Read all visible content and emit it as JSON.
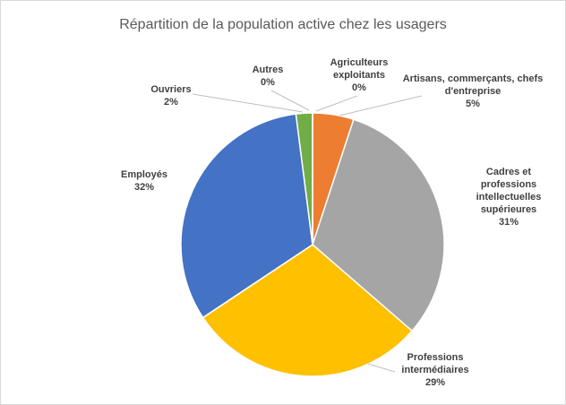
{
  "chart_data": {
    "type": "pie",
    "title": "Répartition de la population active chez les usagers",
    "categories": [
      "Agriculteurs exploitants",
      "Artisans, commerçants, chefs d'entreprise",
      "Cadres et professions intellectuelles supérieures",
      "Professions intermédiaires",
      "Employés",
      "Ouvriers",
      "Autres"
    ],
    "values": [
      0,
      5,
      31,
      29,
      32,
      2,
      0
    ],
    "value_labels": [
      "0%",
      "5%",
      "31%",
      "29%",
      "32%",
      "2%",
      "0%"
    ],
    "colors": [
      "#4472c4",
      "#ed7d31",
      "#a5a5a5",
      "#ffc000",
      "#4472c4",
      "#70ad47",
      "#264478"
    ]
  }
}
